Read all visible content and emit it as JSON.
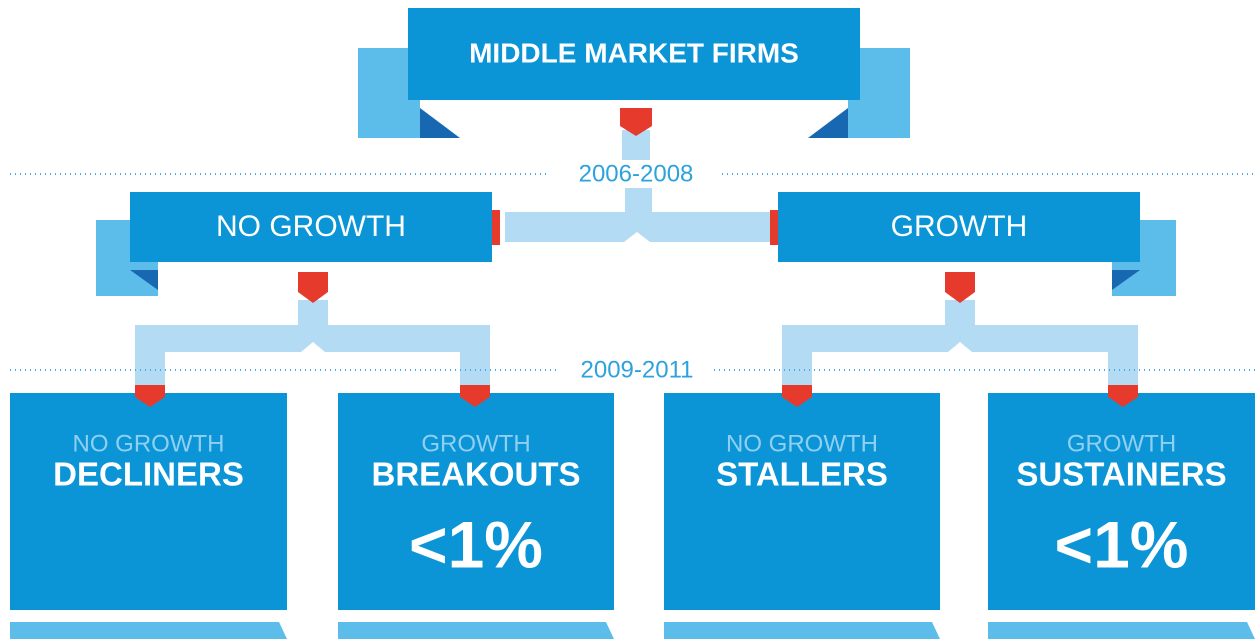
{
  "title": "MIDDLE MARKET FIRMS",
  "periods": [
    "2006-2008",
    "2009-2011"
  ],
  "level1": [
    "NO GROWTH",
    "GROWTH"
  ],
  "outcomes": [
    {
      "sub": "NO GROWTH",
      "label": "DECLINERS"
    },
    {
      "sub": "GROWTH",
      "label": "BREAKOUTS",
      "value": "<1%"
    },
    {
      "sub": "NO GROWTH",
      "label": "STALLERS"
    },
    {
      "sub": "GROWTH",
      "label": "SUSTAINERS",
      "value": "<1%"
    }
  ]
}
